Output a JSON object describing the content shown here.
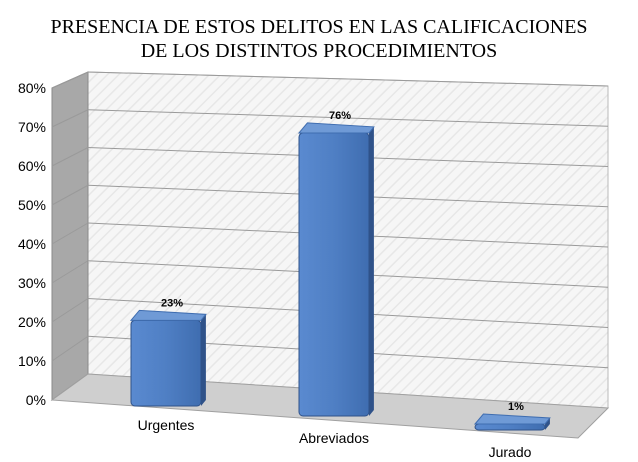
{
  "chart_data": {
    "type": "bar",
    "title": [
      "PRESENCIA DE ESTOS DELITOS EN LAS CALIFICACIONES",
      "DE LOS DISTINTOS PROCEDIMIENTOS"
    ],
    "categories": [
      "Urgentes",
      "Abreviados",
      "Jurado"
    ],
    "values": [
      23,
      76,
      1
    ],
    "value_labels": [
      "23%",
      "76%",
      "1%"
    ],
    "y_ticks": [
      "0%",
      "10%",
      "20%",
      "30%",
      "40%",
      "50%",
      "60%",
      "70%",
      "80%"
    ],
    "ylim": [
      0,
      80
    ],
    "xlabel": "",
    "ylabel": "",
    "grid": true,
    "legend": "none",
    "style": "3d-column",
    "colors": {
      "bar_front": "#4f7fc4",
      "bar_side": "#2f5289",
      "bar_top": "#6f9ad6",
      "wall": "#dcdcdc",
      "floor": "#c8c8c8",
      "side_wall": "#a9a9a9",
      "grid": "#9a9a9a"
    }
  }
}
